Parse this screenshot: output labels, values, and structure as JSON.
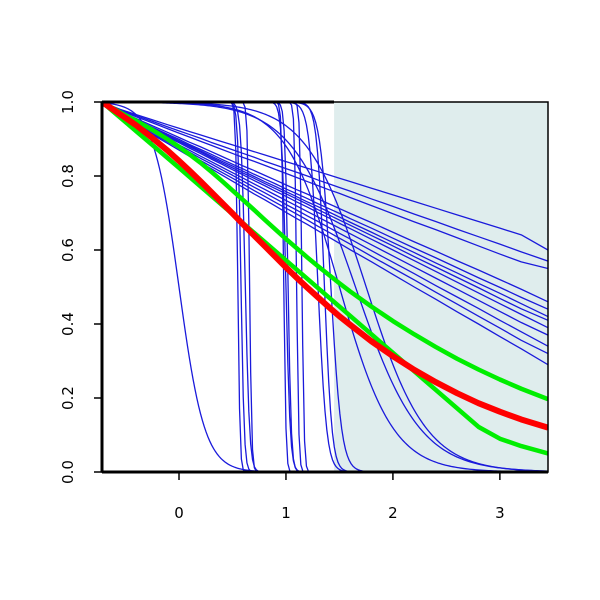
{
  "chart_data": {
    "type": "line",
    "title": "",
    "xlabel": "",
    "ylabel": "",
    "xlim": [
      -0.72,
      3.45
    ],
    "ylim": [
      0,
      1
    ],
    "x_ticks": [
      0,
      1,
      2,
      3
    ],
    "y_ticks": [
      0,
      0.2,
      0.4,
      0.6,
      0.8,
      1
    ],
    "x_tick_labels": [
      "0",
      "1",
      "2",
      "3"
    ],
    "y_tick_labels": [
      "0.0",
      "0.2",
      "0.4",
      "0.6",
      "0.8",
      "1.0"
    ],
    "grid": false,
    "shaded_region": {
      "x_from": 1.45,
      "x_to": 3.45,
      "color": "#dfeded"
    },
    "colors": {
      "background": "#ffffff",
      "axis": "#000000",
      "blue": "#1a1adb",
      "red": "#ff0000",
      "green": "#00ee00"
    },
    "x_grid": [
      -0.72,
      -0.55,
      -0.4,
      -0.25,
      -0.1,
      0,
      0.1,
      0.2,
      0.3,
      0.4,
      0.5,
      0.6,
      0.7,
      0.8,
      0.9,
      1.0,
      1.1,
      1.2,
      1.3,
      1.4,
      1.5,
      1.6,
      1.8,
      2.0,
      2.2,
      2.4,
      2.6,
      2.8,
      3.0,
      3.2,
      3.45
    ],
    "sigmoid_series": [
      {
        "color": "#1a1adb",
        "center": 0.0,
        "width": 0.12
      },
      {
        "color": "#1a1adb",
        "center": 0.55,
        "width": 0.01
      },
      {
        "color": "#1a1adb",
        "center": 0.58,
        "width": 0.015
      },
      {
        "color": "#1a1adb",
        "center": 0.62,
        "width": 0.02
      },
      {
        "color": "#1a1adb",
        "center": 0.66,
        "width": 0.01
      },
      {
        "color": "#1a1adb",
        "center": 0.98,
        "width": 0.01
      },
      {
        "color": "#1a1adb",
        "center": 1.0,
        "width": 0.02
      },
      {
        "color": "#1a1adb",
        "center": 1.02,
        "width": 0.015
      },
      {
        "color": "#1a1adb",
        "center": 1.1,
        "width": 0.01
      },
      {
        "color": "#1a1adb",
        "center": 1.15,
        "width": 0.01
      },
      {
        "color": "#1a1adb",
        "center": 1.3,
        "width": 0.04
      },
      {
        "color": "#1a1adb",
        "center": 1.36,
        "width": 0.035
      },
      {
        "color": "#1a1adb",
        "center": 1.42,
        "width": 0.05
      },
      {
        "color": "#1a1adb",
        "center": 1.5,
        "width": 0.25
      },
      {
        "color": "#1a1adb",
        "center": 1.65,
        "width": 0.3
      },
      {
        "color": "#1a1adb",
        "center": 1.75,
        "width": 0.28
      }
    ],
    "series": [
      {
        "color": "#1a1adb",
        "y": [
          1,
          0.98,
          0.966,
          0.952,
          0.938,
          0.929,
          0.92,
          0.911,
          0.902,
          0.893,
          0.884,
          0.875,
          0.866,
          0.857,
          0.848,
          0.839,
          0.83,
          0.821,
          0.812,
          0.803,
          0.794,
          0.785,
          0.767,
          0.749,
          0.731,
          0.713,
          0.695,
          0.677,
          0.659,
          0.641,
          0.6
        ]
      },
      {
        "color": "#1a1adb",
        "y": [
          1,
          0.977,
          0.96,
          0.944,
          0.927,
          0.916,
          0.905,
          0.894,
          0.883,
          0.872,
          0.861,
          0.85,
          0.84,
          0.829,
          0.818,
          0.807,
          0.796,
          0.785,
          0.774,
          0.763,
          0.753,
          0.742,
          0.72,
          0.698,
          0.676,
          0.655,
          0.633,
          0.611,
          0.589,
          0.568,
          0.55
        ]
      },
      {
        "color": "#1a1adb",
        "y": [
          1,
          0.974,
          0.955,
          0.936,
          0.917,
          0.904,
          0.891,
          0.879,
          0.866,
          0.853,
          0.84,
          0.827,
          0.815,
          0.802,
          0.789,
          0.776,
          0.763,
          0.751,
          0.738,
          0.725,
          0.712,
          0.699,
          0.674,
          0.648,
          0.622,
          0.597,
          0.571,
          0.546,
          0.52,
          0.494,
          0.46
        ]
      },
      {
        "color": "#1a1adb",
        "y": [
          1,
          0.972,
          0.952,
          0.932,
          0.912,
          0.899,
          0.885,
          0.872,
          0.859,
          0.845,
          0.832,
          0.819,
          0.805,
          0.792,
          0.779,
          0.765,
          0.752,
          0.739,
          0.725,
          0.712,
          0.699,
          0.685,
          0.659,
          0.632,
          0.605,
          0.579,
          0.552,
          0.525,
          0.499,
          0.472,
          0.44
        ]
      },
      {
        "color": "#1a1adb",
        "y": [
          1,
          0.971,
          0.95,
          0.93,
          0.909,
          0.895,
          0.882,
          0.868,
          0.854,
          0.84,
          0.827,
          0.813,
          0.799,
          0.785,
          0.772,
          0.758,
          0.744,
          0.73,
          0.717,
          0.703,
          0.689,
          0.675,
          0.648,
          0.62,
          0.593,
          0.565,
          0.538,
          0.51,
          0.483,
          0.455,
          0.42
        ]
      },
      {
        "color": "#1a1adb",
        "y": [
          1,
          0.969,
          0.948,
          0.926,
          0.904,
          0.89,
          0.875,
          0.861,
          0.846,
          0.832,
          0.817,
          0.803,
          0.788,
          0.774,
          0.759,
          0.745,
          0.73,
          0.716,
          0.701,
          0.687,
          0.672,
          0.658,
          0.629,
          0.6,
          0.571,
          0.542,
          0.513,
          0.484,
          0.455,
          0.426,
          0.39
        ]
      },
      {
        "color": "#1a1adb",
        "y": [
          1,
          0.967,
          0.944,
          0.922,
          0.899,
          0.884,
          0.869,
          0.854,
          0.839,
          0.824,
          0.809,
          0.794,
          0.779,
          0.764,
          0.749,
          0.734,
          0.719,
          0.704,
          0.689,
          0.674,
          0.659,
          0.644,
          0.614,
          0.584,
          0.554,
          0.524,
          0.494,
          0.464,
          0.434,
          0.404,
          0.37
        ]
      },
      {
        "color": "#1a1adb",
        "y": [
          1,
          0.966,
          0.942,
          0.919,
          0.895,
          0.88,
          0.864,
          0.848,
          0.833,
          0.817,
          0.802,
          0.786,
          0.77,
          0.755,
          0.739,
          0.723,
          0.708,
          0.692,
          0.677,
          0.661,
          0.645,
          0.63,
          0.598,
          0.567,
          0.536,
          0.504,
          0.473,
          0.442,
          0.41,
          0.379,
          0.34
        ]
      },
      {
        "color": "#1a1adb",
        "y": [
          1,
          0.964,
          0.94,
          0.915,
          0.891,
          0.875,
          0.859,
          0.842,
          0.826,
          0.81,
          0.794,
          0.778,
          0.761,
          0.745,
          0.729,
          0.713,
          0.697,
          0.681,
          0.664,
          0.648,
          0.632,
          0.616,
          0.583,
          0.551,
          0.519,
          0.486,
          0.454,
          0.421,
          0.389,
          0.356,
          0.32
        ]
      },
      {
        "color": "#1a1adb",
        "y": [
          1,
          0.962,
          0.937,
          0.912,
          0.887,
          0.87,
          0.853,
          0.836,
          0.82,
          0.803,
          0.786,
          0.769,
          0.752,
          0.736,
          0.719,
          0.702,
          0.685,
          0.669,
          0.652,
          0.635,
          0.618,
          0.601,
          0.568,
          0.534,
          0.5,
          0.467,
          0.433,
          0.4,
          0.366,
          0.333,
          0.29
        ]
      },
      {
        "color": "#1a1adb",
        "y": [
          1,
          0.978,
          0.963,
          0.948,
          0.932,
          0.922,
          0.912,
          0.902,
          0.891,
          0.881,
          0.871,
          0.861,
          0.851,
          0.84,
          0.83,
          0.82,
          0.81,
          0.8,
          0.789,
          0.779,
          0.769,
          0.759,
          0.738,
          0.718,
          0.697,
          0.677,
          0.656,
          0.636,
          0.616,
          0.595,
          0.57
        ]
      },
      {
        "color": "#1a1adb",
        "y": [
          1,
          0.97,
          0.949,
          0.928,
          0.907,
          0.893,
          0.879,
          0.865,
          0.85,
          0.836,
          0.822,
          0.808,
          0.794,
          0.78,
          0.766,
          0.752,
          0.738,
          0.724,
          0.709,
          0.695,
          0.681,
          0.667,
          0.639,
          0.611,
          0.582,
          0.554,
          0.526,
          0.498,
          0.469,
          0.441,
          0.41
        ]
      },
      {
        "color": "#00ee00",
        "y": [
          1,
          0.972,
          0.949,
          0.925,
          0.898,
          0.879,
          0.858,
          0.836,
          0.812,
          0.787,
          0.761,
          0.735,
          0.709,
          0.682,
          0.656,
          0.63,
          0.605,
          0.58,
          0.556,
          0.533,
          0.51,
          0.488,
          0.447,
          0.408,
          0.372,
          0.338,
          0.306,
          0.277,
          0.25,
          0.225,
          0.197
        ]
      },
      {
        "color": "#00ee00",
        "y": [
          1,
          0.958,
          0.921,
          0.884,
          0.847,
          0.822,
          0.797,
          0.772,
          0.747,
          0.722,
          0.697,
          0.672,
          0.647,
          0.622,
          0.597,
          0.572,
          0.547,
          0.522,
          0.497,
          0.472,
          0.447,
          0.422,
          0.372,
          0.322,
          0.272,
          0.222,
          0.172,
          0.122,
          0.09,
          0.07,
          0.05
        ]
      },
      {
        "color": "#ff0000",
        "y": [
          1,
          0.967,
          0.937,
          0.903,
          0.867,
          0.841,
          0.814,
          0.786,
          0.757,
          0.728,
          0.699,
          0.669,
          0.64,
          0.611,
          0.582,
          0.553,
          0.525,
          0.498,
          0.472,
          0.446,
          0.421,
          0.398,
          0.353,
          0.313,
          0.276,
          0.243,
          0.213,
          0.186,
          0.163,
          0.142,
          0.12
        ]
      }
    ]
  }
}
